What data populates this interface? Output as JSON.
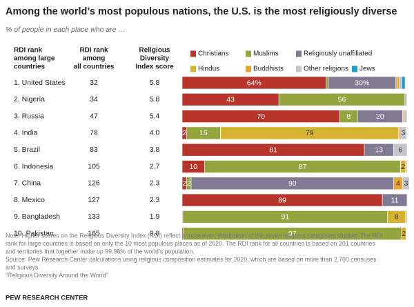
{
  "chart_data": {
    "type": "stacked-bar-table",
    "title": "Among the world’s most populous nations, the U.S. is the most religiously diverse",
    "subtitle": "% of people in each place who are …",
    "column_headers": [
      [
        "RDI rank",
        "among large",
        "countries"
      ],
      [
        "RDI rank",
        "among",
        "all countries"
      ],
      [
        "Religious",
        "Diversity",
        "Index score"
      ]
    ],
    "categories": [
      "1. United States",
      "2. Nigeria",
      "3. Russia",
      "4. India",
      "5. Brazil",
      "6. Indonesia",
      "7. China",
      "8. Mexico",
      "9. Bangladesh",
      "10. Pakistan"
    ],
    "rank_all": [
      32,
      34,
      47,
      78,
      83,
      105,
      126,
      127,
      133,
      165
    ],
    "rdi_score": [
      "5.8",
      "5.8",
      "5.4",
      "4.0",
      "3.8",
      "2.7",
      "2.3",
      "2.3",
      "1.9",
      "0.8"
    ],
    "xlim": [
      0,
      100
    ],
    "series": [
      {
        "name": "Christians",
        "color": "#b7352b",
        "label_color": "#ffffff",
        "values": [
          64,
          43,
          70,
          2,
          81,
          10,
          2,
          89,
          0.3,
          0.5
        ],
        "value_labels": [
          "64%",
          null,
          null,
          null,
          null,
          null,
          null,
          null,
          null,
          null
        ]
      },
      {
        "name": "Muslims",
        "color": "#94a540",
        "label_color": "#ffffff",
        "values": [
          1,
          56,
          8,
          15,
          0,
          87,
          2,
          0,
          91,
          97
        ]
      },
      {
        "name": "Religiously unaffiliated",
        "color": "#817a94",
        "label_color": "#ffffff",
        "values": [
          30,
          0.4,
          20,
          0.1,
          13,
          0.2,
          90,
          11,
          0,
          0
        ],
        "value_labels": [
          "30%",
          null,
          null,
          null,
          null,
          null,
          null,
          null,
          null,
          null
        ]
      },
      {
        "name": "Hindus",
        "color": "#d5b230",
        "label_color": "#333333",
        "values": [
          0.6,
          0,
          0,
          79,
          0,
          2,
          0,
          0,
          8,
          2
        ]
      },
      {
        "name": "Buddhists",
        "color": "#e7a436",
        "label_color": "#333333",
        "values": [
          1,
          0,
          0.5,
          0.7,
          0,
          0.7,
          4,
          0,
          0.6,
          0
        ]
      },
      {
        "name": "Other religions",
        "color": "#c6c6ca",
        "label_color": "#333333",
        "values": [
          1,
          0.6,
          1.5,
          3,
          6,
          0.1,
          3,
          0.2,
          0.1,
          0.3
        ]
      },
      {
        "name": "Jews",
        "color": "#1d9fd1",
        "label_color": "#ffffff",
        "values": [
          1.5,
          0,
          0.1,
          0,
          0,
          0,
          0,
          0,
          0,
          0
        ]
      }
    ],
    "notes": [
      "Note: Higher scores on the Religious Diversity Index (RDI) reflect a more even distribution of the seven religious categories studied. The RDI",
      "rank for large countries is based on only the 10 most populous places as of 2020. The RDI rank for all countries is based on 201 countries",
      "and territories that together make up 99.98% of the world’s population.",
      "Source: Pew Research Center calculations using religious composition estimates for 2020, which are based on more than 2,700 censuses",
      "and surveys.",
      "“Religious Diversity Around the World”"
    ],
    "source_org": "PEW RESEARCH CENTER"
  }
}
